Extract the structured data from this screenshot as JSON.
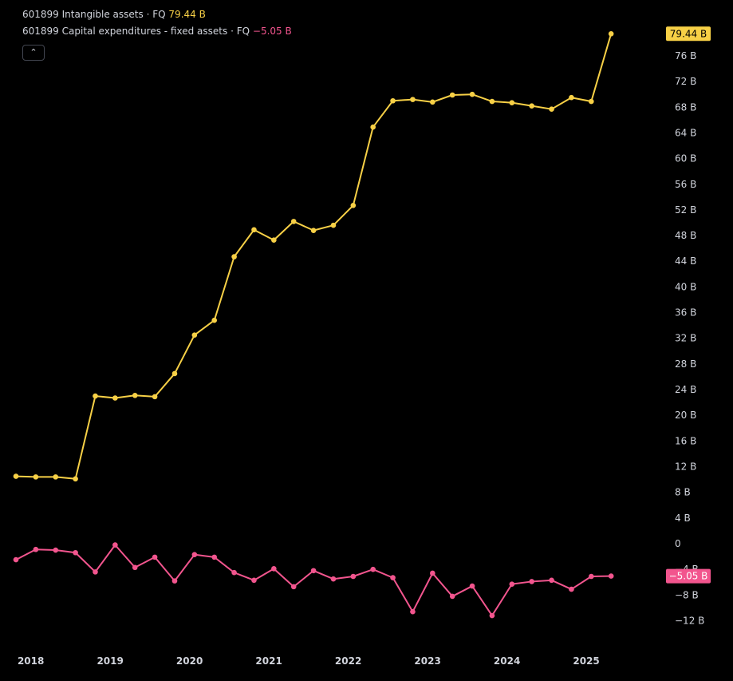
{
  "legend": {
    "series1": {
      "ticker": "601899",
      "name": "Intangible assets",
      "sep": "·",
      "period": "FQ",
      "value": "79.44 B"
    },
    "series2": {
      "ticker": "601899",
      "name": "Capital expenditures - fixed assets",
      "sep": "·",
      "period": "FQ",
      "value": "−5.05 B"
    }
  },
  "collapse_button": {
    "icon": "chevron-up-icon",
    "glyph": "⌃"
  },
  "colors": {
    "background": "#000000",
    "series_intangible": "#f7d046",
    "series_capex": "#f2558e",
    "axis_text": "#d1d4dc",
    "badge_text_dark": "#000000",
    "badge_text_light": "#ffffff"
  },
  "chart_data": {
    "type": "line",
    "title": "",
    "xlabel": "",
    "ylabel": "",
    "ylim": [
      -14,
      82
    ],
    "y_unit": "B",
    "y_ticks": [
      {
        "value": 76,
        "label": "76 B"
      },
      {
        "value": 72,
        "label": "72 B"
      },
      {
        "value": 68,
        "label": "68 B"
      },
      {
        "value": 64,
        "label": "64 B"
      },
      {
        "value": 60,
        "label": "60 B"
      },
      {
        "value": 56,
        "label": "56 B"
      },
      {
        "value": 52,
        "label": "52 B"
      },
      {
        "value": 48,
        "label": "48 B"
      },
      {
        "value": 44,
        "label": "44 B"
      },
      {
        "value": 40,
        "label": "40 B"
      },
      {
        "value": 36,
        "label": "36 B"
      },
      {
        "value": 32,
        "label": "32 B"
      },
      {
        "value": 28,
        "label": "28 B"
      },
      {
        "value": 24,
        "label": "24 B"
      },
      {
        "value": 20,
        "label": "20 B"
      },
      {
        "value": 16,
        "label": "16 B"
      },
      {
        "value": 12,
        "label": "12 B"
      },
      {
        "value": 8,
        "label": "8 B"
      },
      {
        "value": 4,
        "label": "4 B"
      },
      {
        "value": 0,
        "label": "0"
      },
      {
        "value": -4,
        "label": "−4 B"
      },
      {
        "value": -8,
        "label": "−8 B"
      },
      {
        "value": -12,
        "label": "−12 B"
      }
    ],
    "x_range": [
      2017.92,
      2025.75
    ],
    "x_ticks": [
      {
        "value": 2018.0,
        "label": "2018"
      },
      {
        "value": 2019.0,
        "label": "2019"
      },
      {
        "value": 2020.0,
        "label": "2020"
      },
      {
        "value": 2021.0,
        "label": "2021"
      },
      {
        "value": 2022.0,
        "label": "2022"
      },
      {
        "value": 2023.0,
        "label": "2023"
      },
      {
        "value": 2024.0,
        "label": "2024"
      },
      {
        "value": 2025.0,
        "label": "2025"
      }
    ],
    "x": [
      2017.92,
      2018.17,
      2018.42,
      2018.67,
      2018.92,
      2019.17,
      2019.42,
      2019.67,
      2019.92,
      2020.17,
      2020.42,
      2020.67,
      2020.92,
      2021.17,
      2021.42,
      2021.67,
      2021.92,
      2022.17,
      2022.42,
      2022.67,
      2022.92,
      2023.17,
      2023.42,
      2023.67,
      2023.92,
      2024.17,
      2024.42,
      2024.67,
      2024.92,
      2025.17,
      2025.42
    ],
    "series": [
      {
        "name": "Intangible assets",
        "color": "#f7d046",
        "values": [
          10.5,
          10.4,
          10.4,
          10.1,
          23.0,
          22.7,
          23.1,
          22.9,
          26.5,
          32.5,
          34.8,
          44.7,
          48.9,
          47.3,
          50.2,
          48.8,
          49.6,
          52.7,
          64.9,
          69.0,
          69.2,
          68.8,
          69.9,
          70.0,
          68.9,
          68.7,
          68.2,
          67.7,
          69.5,
          68.9,
          79.44
        ],
        "last_label": "79.44 B"
      },
      {
        "name": "Capital expenditures - fixed assets",
        "color": "#f2558e",
        "values": [
          -2.5,
          -0.9,
          -1.0,
          -1.4,
          -4.4,
          -0.2,
          -3.7,
          -2.1,
          -5.8,
          -1.7,
          -2.1,
          -4.5,
          -5.7,
          -3.9,
          -6.7,
          -4.2,
          -5.5,
          -5.1,
          -4.0,
          -5.3,
          -10.6,
          -4.6,
          -8.2,
          -6.6,
          -11.2,
          -6.3,
          -5.9,
          -5.7,
          -7.1,
          -5.1,
          -5.05
        ],
        "last_label": "−5.05 B"
      }
    ]
  }
}
